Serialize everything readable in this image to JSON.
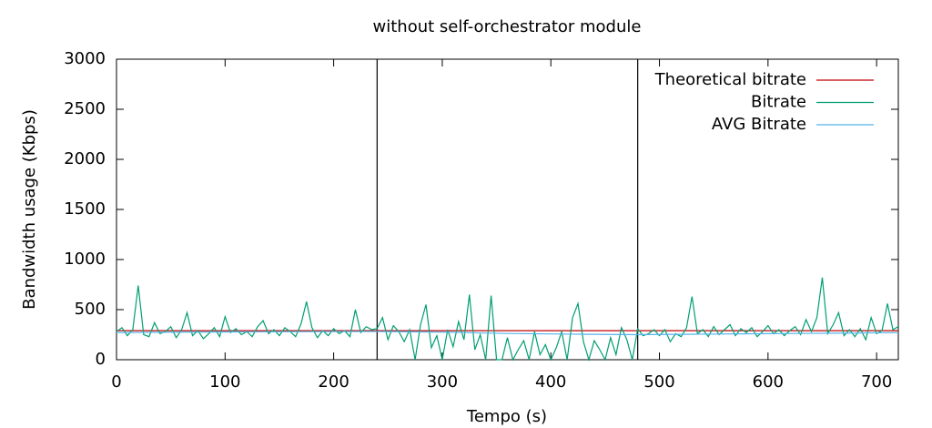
{
  "chart_data": {
    "type": "line",
    "title": "without self-orchestrator module",
    "x_label": "Tempo (s)",
    "y_label": "Bandwidth usage (Kbps)",
    "xlim": [
      0,
      720
    ],
    "ylim": [
      0,
      3000
    ],
    "xticks": [
      0,
      100,
      200,
      300,
      400,
      500,
      600,
      700
    ],
    "yticks": [
      0,
      500,
      1000,
      1500,
      2000,
      2500,
      3000
    ],
    "vlines": [
      240,
      480
    ],
    "legend": "top-right",
    "series": [
      {
        "name": "Theoretical bitrate",
        "color": "#c00000",
        "x": [
          0,
          720
        ],
        "values": [
          290,
          290
        ]
      },
      {
        "name": "Bitrate",
        "color": "#009e73",
        "x": [
          0,
          5,
          10,
          15,
          20,
          25,
          30,
          35,
          40,
          45,
          50,
          55,
          60,
          65,
          70,
          75,
          80,
          85,
          90,
          95,
          100,
          105,
          110,
          115,
          120,
          125,
          130,
          135,
          140,
          145,
          150,
          155,
          160,
          165,
          170,
          175,
          180,
          185,
          190,
          195,
          200,
          205,
          210,
          215,
          220,
          225,
          230,
          235,
          240,
          245,
          250,
          255,
          260,
          265,
          270,
          275,
          280,
          285,
          290,
          295,
          300,
          305,
          310,
          315,
          320,
          325,
          330,
          335,
          340,
          345,
          350,
          355,
          360,
          365,
          370,
          375,
          380,
          385,
          390,
          395,
          400,
          405,
          410,
          415,
          420,
          425,
          430,
          435,
          440,
          445,
          450,
          455,
          460,
          465,
          470,
          475,
          480,
          485,
          490,
          495,
          500,
          505,
          510,
          515,
          520,
          525,
          530,
          535,
          540,
          545,
          550,
          555,
          560,
          565,
          570,
          575,
          580,
          585,
          590,
          595,
          600,
          605,
          610,
          615,
          620,
          625,
          630,
          635,
          640,
          645,
          650,
          655,
          660,
          665,
          670,
          675,
          680,
          685,
          690,
          695,
          700,
          705,
          710,
          715,
          720
        ],
        "values": [
          280,
          320,
          240,
          300,
          740,
          250,
          230,
          370,
          260,
          280,
          330,
          220,
          300,
          470,
          240,
          290,
          210,
          260,
          320,
          230,
          430,
          270,
          310,
          250,
          280,
          230,
          330,
          390,
          260,
          300,
          240,
          320,
          280,
          230,
          360,
          580,
          320,
          220,
          290,
          240,
          310,
          260,
          290,
          230,
          500,
          270,
          330,
          300,
          310,
          420,
          200,
          340,
          280,
          180,
          300,
          0,
          350,
          550,
          120,
          240,
          0,
          300,
          130,
          380,
          200,
          650,
          100,
          250,
          0,
          640,
          0,
          0,
          220,
          0,
          100,
          190,
          0,
          280,
          50,
          150,
          0,
          120,
          280,
          0,
          420,
          560,
          180,
          0,
          190,
          100,
          0,
          220,
          50,
          320,
          200,
          0,
          310,
          240,
          260,
          300,
          240,
          300,
          180,
          260,
          230,
          320,
          630,
          260,
          300,
          230,
          330,
          250,
          300,
          350,
          240,
          310,
          270,
          320,
          230,
          280,
          340,
          260,
          300,
          240,
          290,
          330,
          250,
          400,
          280,
          420,
          820,
          260,
          350,
          470,
          240,
          300,
          230,
          310,
          200,
          420,
          260,
          290,
          560,
          300,
          330
        ]
      },
      {
        "name": "AVG Bitrate",
        "color": "#56b4e9",
        "x": [
          0,
          60,
          120,
          180,
          240,
          300,
          360,
          420,
          480,
          540,
          600,
          660,
          720
        ],
        "values": [
          270,
          275,
          278,
          280,
          282,
          275,
          262,
          255,
          250,
          255,
          260,
          265,
          270
        ]
      }
    ]
  }
}
